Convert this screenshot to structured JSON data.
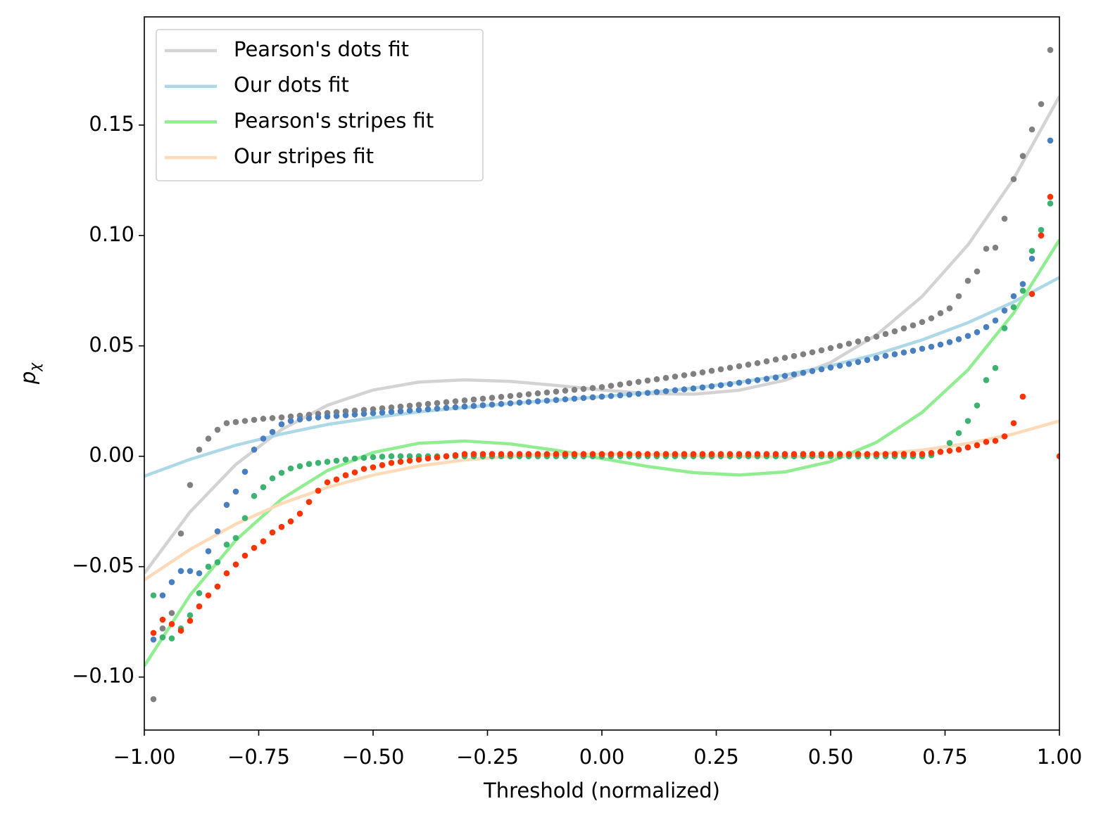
{
  "chart_data": {
    "type": "line",
    "xlabel": "Threshold (normalized)",
    "ylabel": "p",
    "ylabel_sub": "χ",
    "xlim": [
      -1,
      1
    ],
    "ylim": [
      -0.124,
      0.199
    ],
    "xticks": [
      {
        "value": -1,
        "label": "−1.00"
      },
      {
        "value": -0.75,
        "label": "−0.75"
      },
      {
        "value": -0.5,
        "label": "−0.50"
      },
      {
        "value": -0.25,
        "label": "−0.25"
      },
      {
        "value": 0,
        "label": "0.00"
      },
      {
        "value": 0.25,
        "label": "0.25"
      },
      {
        "value": 0.5,
        "label": "0.50"
      },
      {
        "value": 0.75,
        "label": "0.75"
      },
      {
        "value": 1,
        "label": "1.00"
      }
    ],
    "yticks": [
      {
        "value": -0.1,
        "label": "−0.10"
      },
      {
        "value": -0.05,
        "label": "−0.05"
      },
      {
        "value": 0,
        "label": "0.00"
      },
      {
        "value": 0.05,
        "label": "0.05"
      },
      {
        "value": 0.1,
        "label": "0.10"
      },
      {
        "value": 0.15,
        "label": "0.15"
      }
    ],
    "legend": "upper left",
    "x": [
      -1,
      -0.9,
      -0.8,
      -0.7,
      -0.6,
      -0.5,
      -0.4,
      -0.3,
      -0.2,
      -0.1,
      0,
      0.1,
      0.2,
      0.3,
      0.4,
      0.5,
      0.6,
      0.7,
      0.8,
      0.9,
      1
    ],
    "series": [
      {
        "name": "Pearson's dots fit",
        "color": "#d3d3d3",
        "values": [
          -0.053,
          -0.0252,
          -0.0037,
          0.0121,
          0.0231,
          0.03,
          0.0336,
          0.0346,
          0.0339,
          0.0321,
          0.03,
          0.0284,
          0.0281,
          0.0299,
          0.0344,
          0.0425,
          0.0549,
          0.0724,
          0.0957,
          0.1257,
          0.163
        ]
      },
      {
        "name": "Our dots fit",
        "color": "#add8e6",
        "values": [
          -0.009,
          -0.0014,
          0.005,
          0.0101,
          0.0144,
          0.0175,
          0.0201,
          0.0221,
          0.0239,
          0.0254,
          0.027,
          0.0288,
          0.0309,
          0.0335,
          0.0368,
          0.041,
          0.0462,
          0.0527,
          0.0605,
          0.0699,
          0.081
        ]
      },
      {
        "name": "Pearson's stripes fit",
        "color": "#90ee90",
        "values": [
          -0.095,
          -0.0629,
          -0.038,
          -0.0194,
          -0.0065,
          0.0017,
          0.0059,
          0.0069,
          0.0056,
          0.0027,
          -0.001,
          -0.0046,
          -0.0074,
          -0.0085,
          -0.0071,
          -0.0024,
          0.0063,
          0.0199,
          0.0391,
          0.0649,
          0.098
        ]
      },
      {
        "name": "Our stripes fit",
        "color": "#ffdab9",
        "values": [
          -0.056,
          -0.0422,
          -0.0307,
          -0.0214,
          -0.0141,
          -0.0085,
          -0.0044,
          -0.0017,
          0,
          0.0008,
          0.001,
          0.0008,
          0.0003,
          -0.0001,
          -0.0003,
          0,
          0.001,
          0.0028,
          0.0058,
          0.0101,
          0.016
        ]
      }
    ],
    "points": {
      "x": [
        -0.98,
        -0.96,
        -0.94,
        -0.92,
        -0.9,
        -0.88,
        -0.86,
        -0.84,
        -0.82,
        -0.8,
        -0.78,
        -0.76,
        -0.74,
        -0.72,
        -0.7,
        -0.68,
        -0.66,
        -0.64,
        -0.62,
        -0.6,
        -0.58,
        -0.56,
        -0.54,
        -0.52,
        -0.5,
        -0.48,
        -0.46,
        -0.44,
        -0.42,
        -0.4,
        -0.38,
        -0.36,
        -0.34,
        -0.32,
        -0.3,
        -0.28,
        -0.26,
        -0.24,
        -0.22,
        -0.2,
        -0.18,
        -0.16,
        -0.14,
        -0.12,
        -0.1,
        -0.08,
        -0.06,
        -0.04,
        -0.02,
        0,
        0.02,
        0.04,
        0.06,
        0.08,
        0.1,
        0.12,
        0.14,
        0.16,
        0.18,
        0.2,
        0.22,
        0.24,
        0.26,
        0.28,
        0.3,
        0.32,
        0.34,
        0.36,
        0.38,
        0.4,
        0.42,
        0.44,
        0.46,
        0.48,
        0.5,
        0.52,
        0.54,
        0.56,
        0.58,
        0.6,
        0.62,
        0.64,
        0.66,
        0.68,
        0.7,
        0.72,
        0.74,
        0.76,
        0.78,
        0.8,
        0.82,
        0.84,
        0.86,
        0.88,
        0.9,
        0.92,
        0.94,
        0.96,
        0.98,
        1
      ],
      "series": [
        {
          "color": "#808080",
          "values": [
            -0.11,
            -0.078,
            -0.071,
            -0.035,
            -0.013,
            0.003,
            0.008,
            0.012,
            0.015,
            0.0155,
            0.016,
            0.0165,
            0.017,
            0.0173,
            0.0176,
            0.018,
            0.0184,
            0.0188,
            0.0192,
            0.0196,
            0.02,
            0.0204,
            0.0207,
            0.021,
            0.0213,
            0.0217,
            0.0221,
            0.0225,
            0.0229,
            0.0233,
            0.0237,
            0.0241,
            0.0245,
            0.0249,
            0.0253,
            0.0257,
            0.0261,
            0.0265,
            0.0269,
            0.0273,
            0.0277,
            0.0281,
            0.0285,
            0.0289,
            0.0293,
            0.0297,
            0.0301,
            0.0305,
            0.0309,
            0.0313,
            0.0319,
            0.0325,
            0.0331,
            0.0337,
            0.0343,
            0.0349,
            0.0355,
            0.0361,
            0.0367,
            0.0373,
            0.038,
            0.0387,
            0.0394,
            0.0401,
            0.0408,
            0.0415,
            0.0422,
            0.043,
            0.0438,
            0.0446,
            0.0454,
            0.0462,
            0.0471,
            0.048,
            0.049,
            0.05,
            0.051,
            0.052,
            0.0531,
            0.0542,
            0.0554,
            0.0566,
            0.0579,
            0.0593,
            0.0608,
            0.0625,
            0.0648,
            0.067,
            0.0725,
            0.0795,
            0.0837,
            0.094,
            0.0945,
            0.1076,
            0.1255,
            0.136,
            0.148,
            0.1595,
            0.184,
            null
          ]
        },
        {
          "color": "#4a7fbf",
          "values": [
            -0.083,
            -0.063,
            -0.057,
            -0.052,
            -0.052,
            -0.053,
            -0.043,
            -0.034,
            -0.022,
            -0.016,
            -0.007,
            0.003,
            0.008,
            0.011,
            0.0145,
            0.016,
            0.0167,
            0.0172,
            0.0176,
            0.018,
            0.0183,
            0.0186,
            0.0189,
            0.0192,
            0.0195,
            0.0198,
            0.0201,
            0.0204,
            0.0207,
            0.021,
            0.0213,
            0.0216,
            0.0219,
            0.0222,
            0.0225,
            0.0228,
            0.0231,
            0.0234,
            0.0237,
            0.024,
            0.0243,
            0.0246,
            0.0249,
            0.0252,
            0.0255,
            0.0258,
            0.0261,
            0.0264,
            0.0267,
            0.027,
            0.0273,
            0.0276,
            0.0279,
            0.0283,
            0.0287,
            0.0291,
            0.0295,
            0.0299,
            0.0303,
            0.0307,
            0.0312,
            0.0317,
            0.0322,
            0.0327,
            0.0333,
            0.0339,
            0.0345,
            0.0351,
            0.0357,
            0.0364,
            0.0371,
            0.0378,
            0.0386,
            0.0394,
            0.0402,
            0.041,
            0.0418,
            0.0427,
            0.0436,
            0.0445,
            0.0455,
            0.0462,
            0.047,
            0.0478,
            0.0487,
            0.0496,
            0.0506,
            0.0517,
            0.053,
            0.0545,
            0.0562,
            0.0585,
            0.0615,
            0.066,
            0.0725,
            0.078,
            0.0895,
            0.1,
            0.143,
            null
          ]
        },
        {
          "color": "#3cb371",
          "values": [
            -0.063,
            -0.082,
            -0.0825,
            -0.078,
            -0.072,
            -0.062,
            -0.05,
            -0.048,
            -0.04,
            -0.037,
            -0.028,
            -0.018,
            -0.014,
            -0.01,
            -0.0075,
            -0.0055,
            -0.0045,
            -0.0035,
            -0.003,
            -0.0025,
            -0.002,
            -0.0015,
            -0.001,
            -0.0007,
            -0.0004,
            -0.0002,
            0,
            0,
            0,
            0,
            0,
            0,
            0,
            0,
            0,
            0,
            0,
            0,
            0,
            0,
            0,
            0,
            0,
            0,
            0,
            0,
            0,
            0,
            0,
            0,
            0,
            0,
            0,
            0,
            0,
            0,
            0,
            0,
            0,
            0,
            0,
            0,
            0,
            0,
            0,
            0,
            0,
            0,
            0,
            0,
            0,
            0,
            0,
            0,
            0,
            0,
            0,
            0,
            0,
            0,
            0,
            0,
            0,
            0,
            0,
            0.0005,
            0.002,
            0.006,
            0.0105,
            0.016,
            0.023,
            0.0345,
            0.04,
            0.058,
            0.0675,
            0.075,
            0.093,
            0.1025,
            0.1145,
            null
          ]
        },
        {
          "color": "#ff3300",
          "values": [
            -0.08,
            -0.074,
            -0.076,
            -0.079,
            -0.0745,
            -0.068,
            -0.063,
            -0.059,
            -0.053,
            -0.049,
            -0.045,
            -0.0415,
            -0.0385,
            -0.0345,
            -0.032,
            -0.0295,
            -0.026,
            -0.0207,
            -0.0156,
            -0.0118,
            -0.0105,
            -0.0086,
            -0.0073,
            -0.0057,
            -0.005,
            -0.004,
            -0.003,
            -0.0025,
            -0.002,
            -0.0015,
            -0.001,
            -0.0005,
            0,
            0.0005,
            0.001,
            0.001,
            0.001,
            0.001,
            0.001,
            0.001,
            0.001,
            0.001,
            0.001,
            0.001,
            0.001,
            0.001,
            0.001,
            0.001,
            0.001,
            0.001,
            0.001,
            0.001,
            0.001,
            0.001,
            0.001,
            0.001,
            0.001,
            0.001,
            0.001,
            0.001,
            0.001,
            0.001,
            0.001,
            0.001,
            0.001,
            0.001,
            0.001,
            0.001,
            0.001,
            0.001,
            0.001,
            0.001,
            0.001,
            0.001,
            0.001,
            0.001,
            0.001,
            0.001,
            0.001,
            0.001,
            0.001,
            0.001,
            0.001,
            0.001,
            0.001,
            0.0015,
            0.002,
            0.0025,
            0.003,
            0.004,
            0.005,
            0.0065,
            0.007,
            0.009,
            0.015,
            0.027,
            0.0735,
            0.1,
            0.1175,
            0
          ]
        }
      ]
    }
  }
}
